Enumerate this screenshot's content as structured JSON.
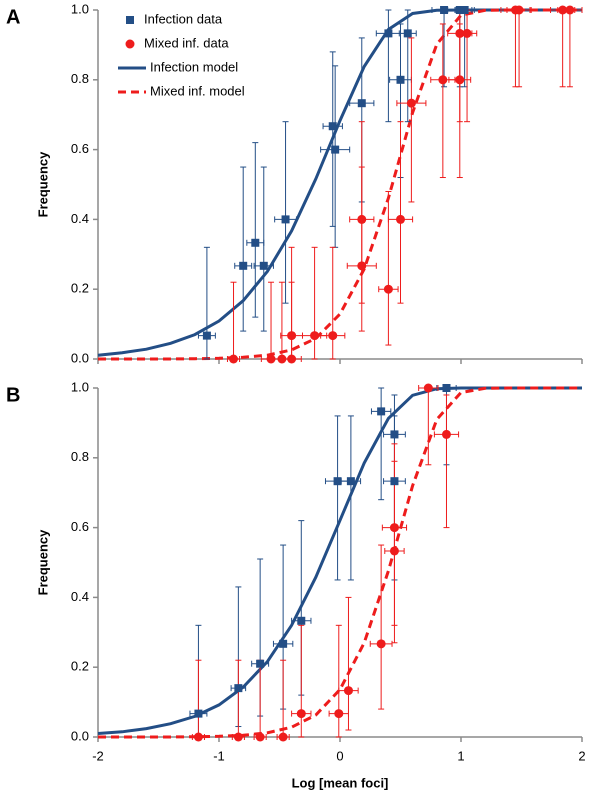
{
  "chart_data": [
    {
      "type": "scatter",
      "label": "A",
      "ylabel": "Frequency",
      "xlim": [
        -2,
        2
      ],
      "xticks": [
        -2,
        -1,
        0,
        1,
        2
      ],
      "xtick_labels": false,
      "ylim": [
        0,
        1
      ],
      "yticks": [
        {
          "value": 0,
          "label": "0.0"
        },
        {
          "value": 0.2,
          "label": "0.2"
        },
        {
          "value": 0.4,
          "label": "0.4"
        },
        {
          "value": 0.6,
          "label": "0.6"
        },
        {
          "value": 0.8,
          "label": "0.8"
        },
        {
          "value": 1,
          "label": "1.0"
        }
      ],
      "legend": "upper left",
      "series": [
        {
          "name": "Infection data",
          "type": "scatter",
          "marker": "square",
          "color": "#234e86",
          "x": [
            -1.1,
            -0.8,
            -0.7,
            -0.63,
            -0.45,
            -0.06,
            -0.04,
            0.18,
            0.4,
            0.56,
            0.5,
            0.86,
            0.99,
            1.03
          ],
          "y": [
            0.067,
            0.267,
            0.333,
            0.267,
            0.4,
            0.667,
            0.6,
            0.733,
            0.933,
            0.933,
            0.8,
            1,
            1,
            1
          ],
          "ci_low": [
            0,
            0.08,
            0.12,
            0.08,
            0.16,
            0.38,
            0.32,
            0.45,
            0.68,
            0.68,
            0.52,
            0.78,
            0.78,
            0.78
          ],
          "ci_high": [
            0.32,
            0.55,
            0.62,
            0.55,
            0.68,
            0.88,
            0.84,
            0.92,
            1,
            1,
            0.96,
            1,
            1,
            1
          ],
          "xerr": [
            0.07,
            0.07,
            0.07,
            0.08,
            0.09,
            0.08,
            0.12,
            0.1,
            0.1,
            0.07,
            0.09,
            0.1,
            0.1,
            0.08
          ]
        },
        {
          "name": "Mixed inf. data",
          "type": "scatter",
          "marker": "circle",
          "color": "#ee1c1c",
          "x": [
            -0.88,
            -0.57,
            -0.48,
            -0.4,
            -0.4,
            -0.21,
            -0.06,
            0.18,
            0.18,
            0.4,
            0.5,
            0.59,
            0.85,
            0.99,
            0.99,
            1.05,
            1.45,
            1.48,
            1.84,
            1.9
          ],
          "y": [
            0,
            0,
            0,
            0,
            0.067,
            0.067,
            0.067,
            0.267,
            0.4,
            0.2,
            0.4,
            0.733,
            0.8,
            0.8,
            0.933,
            0.933,
            1,
            1,
            1,
            1
          ],
          "ci_low": [
            0,
            0,
            0,
            0,
            0,
            0,
            0,
            0.08,
            0.16,
            0.04,
            0.16,
            0.45,
            0.52,
            0.52,
            0.68,
            0.68,
            0.78,
            0.78,
            0.78,
            0.78
          ],
          "ci_high": [
            0.22,
            0.22,
            0.22,
            0.22,
            0.32,
            0.32,
            0.32,
            0.55,
            0.68,
            0.48,
            0.68,
            0.92,
            0.96,
            0.96,
            1,
            1,
            1,
            1,
            1,
            1
          ],
          "xerr": [
            0.05,
            0.08,
            0.08,
            0.08,
            0.09,
            0.1,
            0.1,
            0.12,
            0.1,
            0.08,
            0.1,
            0.12,
            0.1,
            0.09,
            0.1,
            0.08,
            0.12,
            0.1,
            0.1,
            0.1
          ]
        },
        {
          "name": "Infection model",
          "type": "line",
          "dash": false,
          "color": "#234e86",
          "x": [
            -2,
            -1.8,
            -1.6,
            -1.4,
            -1.2,
            -1,
            -0.8,
            -0.6,
            -0.4,
            -0.2,
            0,
            0.2,
            0.4,
            0.6,
            0.8,
            1,
            1.2,
            1.4,
            1.6,
            1.8,
            2
          ],
          "y": [
            0.011,
            0.018,
            0.028,
            0.045,
            0.07,
            0.109,
            0.167,
            0.251,
            0.367,
            0.516,
            0.683,
            0.838,
            0.944,
            0.99,
            0.999,
            1,
            1,
            1,
            1,
            1,
            1
          ]
        },
        {
          "name": "Mixed inf. model",
          "type": "line",
          "dash": true,
          "color": "#ee1c1c",
          "x": [
            -2,
            -1.8,
            -1.6,
            -1.4,
            -1.2,
            -1,
            -0.8,
            -0.6,
            -0.4,
            -0.2,
            0,
            0.2,
            0.4,
            0.6,
            0.8,
            1,
            1.2,
            1.4,
            1.6,
            1.8,
            2
          ],
          "y": [
            0,
            0,
            0,
            0,
            0.001,
            0.002,
            0.005,
            0.011,
            0.026,
            0.059,
            0.129,
            0.258,
            0.461,
            0.706,
            0.902,
            0.985,
            0.999,
            1,
            1,
            1,
            1
          ]
        }
      ]
    },
    {
      "type": "scatter",
      "label": "B",
      "ylabel": "Frequency",
      "xlabel": "Log [mean foci]",
      "xlim": [
        -2,
        2
      ],
      "xticks": [
        -2,
        -1,
        0,
        1,
        2
      ],
      "xtick_labels": true,
      "ylim": [
        0,
        1
      ],
      "yticks": [
        {
          "value": 0,
          "label": "0.0"
        },
        {
          "value": 0.2,
          "label": "0.2"
        },
        {
          "value": 0.4,
          "label": "0.4"
        },
        {
          "value": 0.6,
          "label": "0.6"
        },
        {
          "value": 0.8,
          "label": "0.8"
        },
        {
          "value": 1,
          "label": "1.0"
        }
      ],
      "series": [
        {
          "type": "scatter",
          "marker": "square",
          "color": "#234e86",
          "x": [
            -1.17,
            -0.84,
            -0.66,
            -0.47,
            -0.32,
            -0.02,
            0.09,
            0.34,
            0.45,
            0.45,
            0.88
          ],
          "y": [
            0.067,
            0.14,
            0.21,
            0.267,
            0.333,
            0.733,
            0.733,
            0.933,
            0.867,
            0.733,
            1
          ],
          "ci_low": [
            0,
            0.03,
            0.06,
            0.08,
            0.12,
            0.45,
            0.45,
            0.68,
            0.6,
            0.45,
            0.78
          ],
          "ci_high": [
            0.32,
            0.43,
            0.51,
            0.55,
            0.62,
            0.92,
            0.92,
            1,
            0.98,
            0.92,
            1
          ],
          "xerr": [
            0.07,
            0.06,
            0.07,
            0.08,
            0.08,
            0.1,
            0.08,
            0.08,
            0.09,
            0.09,
            0.08
          ]
        },
        {
          "type": "scatter",
          "marker": "circle",
          "color": "#ee1c1c",
          "x": [
            -1.17,
            -0.84,
            -0.66,
            -0.47,
            -0.32,
            -0.01,
            0.07,
            0.34,
            0.45,
            0.45,
            0.73,
            0.88
          ],
          "y": [
            0,
            0,
            0,
            0,
            0.067,
            0.067,
            0.133,
            0.267,
            0.533,
            0.6,
            1,
            0.867
          ],
          "ci_low": [
            0,
            0,
            0,
            0,
            0,
            0,
            0.02,
            0.08,
            0.27,
            0.32,
            0.78,
            0.6
          ],
          "ci_high": [
            0.22,
            0.22,
            0.22,
            0.22,
            0.32,
            0.32,
            0.4,
            0.55,
            0.79,
            0.84,
            1,
            0.98
          ],
          "xerr": [
            0.05,
            0.05,
            0.05,
            0.05,
            0.08,
            0.08,
            0.08,
            0.09,
            0.08,
            0.1,
            0.08,
            0.1
          ]
        },
        {
          "type": "line",
          "dash": false,
          "color": "#234e86",
          "x": [
            -2,
            -1.8,
            -1.6,
            -1.4,
            -1.2,
            -1,
            -0.8,
            -0.6,
            -0.4,
            -0.2,
            0,
            0.2,
            0.4,
            0.6,
            0.8,
            1,
            1.2,
            1.4,
            1.6,
            1.8,
            2
          ],
          "y": [
            0.01,
            0.015,
            0.024,
            0.038,
            0.059,
            0.092,
            0.143,
            0.216,
            0.32,
            0.458,
            0.621,
            0.785,
            0.913,
            0.979,
            0.998,
            1,
            1,
            1,
            1,
            1,
            1
          ]
        },
        {
          "type": "line",
          "dash": true,
          "color": "#ee1c1c",
          "x": [
            -2,
            -1.8,
            -1.6,
            -1.4,
            -1.2,
            -1,
            -0.8,
            -0.6,
            -0.4,
            -0.2,
            0,
            0.2,
            0.4,
            0.6,
            0.8,
            1,
            1.2,
            1.4,
            1.6,
            1.8,
            2
          ],
          "y": [
            0,
            0,
            0,
            0,
            0.001,
            0.002,
            0.005,
            0.012,
            0.028,
            0.063,
            0.136,
            0.27,
            0.476,
            0.72,
            0.91,
            0.987,
            0.999,
            1,
            1,
            1,
            1
          ]
        }
      ]
    }
  ]
}
